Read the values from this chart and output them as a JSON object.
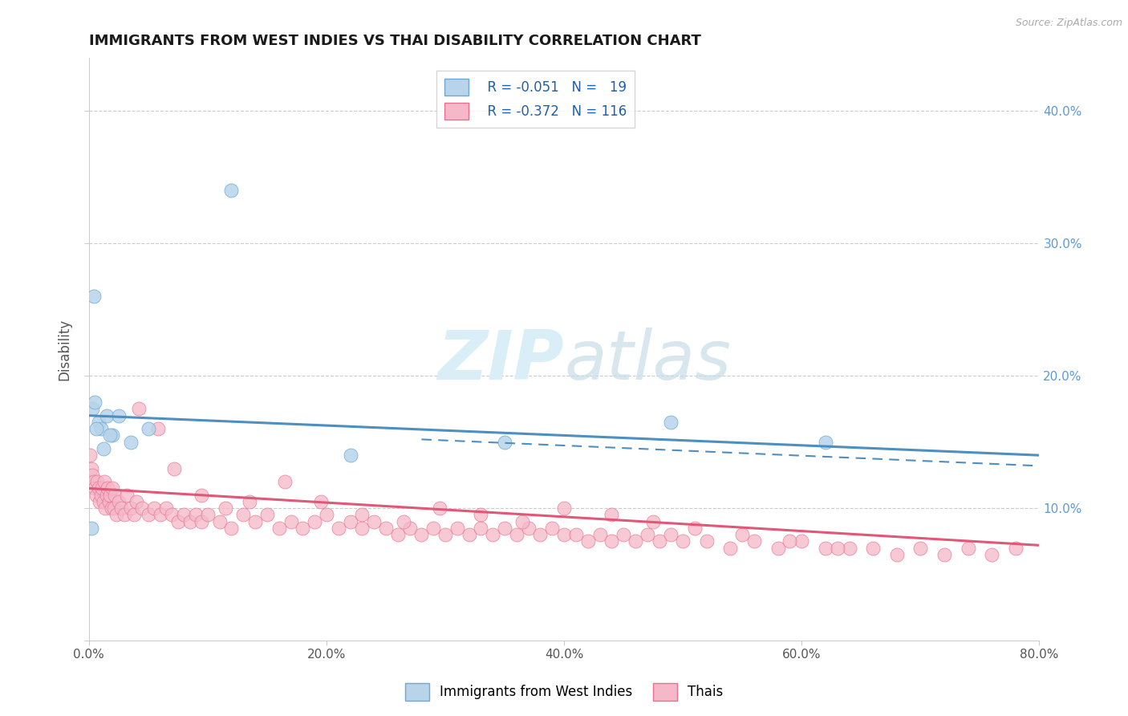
{
  "title": "IMMIGRANTS FROM WEST INDIES VS THAI DISABILITY CORRELATION CHART",
  "source": "Source: ZipAtlas.com",
  "ylabel": "Disability",
  "x_min": 0.0,
  "x_max": 80.0,
  "y_min": 0.0,
  "y_max": 44.0,
  "y_ticks_right": [
    10.0,
    20.0,
    30.0,
    40.0
  ],
  "x_ticks": [
    0.0,
    20.0,
    40.0,
    60.0,
    80.0
  ],
  "legend_r1": "R = -0.051",
  "legend_n1": "N =  19",
  "legend_r2": "R = -0.372",
  "legend_n2": "N = 116",
  "legend_label1": "Immigrants from West Indies",
  "legend_label2": "Thais",
  "color_blue_fill": "#b8d4ea",
  "color_pink_fill": "#f5b8c8",
  "color_blue_edge": "#6aaad4",
  "color_pink_edge": "#e87090",
  "color_blue_line": "#4f8fc0",
  "color_pink_line": "#e05878",
  "watermark_color": "#daeef8",
  "background": "#ffffff",
  "grid_color": "#cccccc",
  "right_axis_color": "#5b9bd5",
  "blue_solid_line": [
    0.0,
    17.0,
    80.0,
    14.0
  ],
  "blue_dash_line": [
    28.0,
    15.2,
    80.0,
    13.2
  ],
  "pink_solid_line": [
    0.0,
    11.5,
    80.0,
    7.2
  ],
  "blue_scatter_x": [
    0.3,
    0.5,
    0.8,
    1.0,
    1.5,
    2.0,
    2.5,
    3.5,
    5.0,
    1.2,
    0.6,
    0.4,
    1.8,
    12.0,
    22.0,
    35.0,
    49.0,
    62.0,
    0.2
  ],
  "blue_scatter_y": [
    17.5,
    18.0,
    16.5,
    16.0,
    17.0,
    15.5,
    17.0,
    15.0,
    16.0,
    14.5,
    16.0,
    26.0,
    15.5,
    34.0,
    14.0,
    15.0,
    16.5,
    15.0,
    8.5
  ],
  "pink_scatter_x": [
    0.1,
    0.2,
    0.3,
    0.4,
    0.5,
    0.6,
    0.7,
    0.8,
    0.9,
    1.0,
    1.1,
    1.2,
    1.3,
    1.4,
    1.5,
    1.6,
    1.7,
    1.8,
    1.9,
    2.0,
    2.1,
    2.2,
    2.3,
    2.5,
    2.7,
    3.0,
    3.2,
    3.5,
    3.8,
    4.0,
    4.5,
    5.0,
    5.5,
    6.0,
    6.5,
    7.0,
    7.5,
    8.0,
    8.5,
    9.0,
    9.5,
    10.0,
    11.0,
    12.0,
    13.0,
    14.0,
    15.0,
    16.0,
    17.0,
    18.0,
    19.0,
    20.0,
    21.0,
    22.0,
    23.0,
    24.0,
    25.0,
    26.0,
    27.0,
    28.0,
    29.0,
    30.0,
    31.0,
    32.0,
    33.0,
    34.0,
    35.0,
    36.0,
    37.0,
    38.0,
    39.0,
    40.0,
    41.0,
    42.0,
    43.0,
    44.0,
    45.0,
    46.0,
    47.0,
    48.0,
    49.0,
    50.0,
    52.0,
    54.0,
    56.0,
    58.0,
    60.0,
    62.0,
    64.0,
    66.0,
    68.0,
    70.0,
    72.0,
    74.0,
    76.0,
    78.0,
    4.2,
    5.8,
    7.2,
    9.5,
    11.5,
    13.5,
    16.5,
    19.5,
    23.0,
    26.5,
    29.5,
    33.0,
    36.5,
    40.0,
    44.0,
    47.5,
    51.0,
    55.0,
    59.0,
    63.0
  ],
  "pink_scatter_y": [
    14.0,
    13.0,
    12.5,
    12.0,
    11.5,
    11.0,
    12.0,
    11.5,
    10.5,
    11.0,
    11.5,
    10.5,
    12.0,
    10.0,
    11.0,
    11.5,
    10.5,
    11.0,
    10.0,
    11.5,
    10.0,
    11.0,
    9.5,
    10.5,
    10.0,
    9.5,
    11.0,
    10.0,
    9.5,
    10.5,
    10.0,
    9.5,
    10.0,
    9.5,
    10.0,
    9.5,
    9.0,
    9.5,
    9.0,
    9.5,
    9.0,
    9.5,
    9.0,
    8.5,
    9.5,
    9.0,
    9.5,
    8.5,
    9.0,
    8.5,
    9.0,
    9.5,
    8.5,
    9.0,
    8.5,
    9.0,
    8.5,
    8.0,
    8.5,
    8.0,
    8.5,
    8.0,
    8.5,
    8.0,
    8.5,
    8.0,
    8.5,
    8.0,
    8.5,
    8.0,
    8.5,
    8.0,
    8.0,
    7.5,
    8.0,
    7.5,
    8.0,
    7.5,
    8.0,
    7.5,
    8.0,
    7.5,
    7.5,
    7.0,
    7.5,
    7.0,
    7.5,
    7.0,
    7.0,
    7.0,
    6.5,
    7.0,
    6.5,
    7.0,
    6.5,
    7.0,
    17.5,
    16.0,
    13.0,
    11.0,
    10.0,
    10.5,
    12.0,
    10.5,
    9.5,
    9.0,
    10.0,
    9.5,
    9.0,
    10.0,
    9.5,
    9.0,
    8.5,
    8.0,
    7.5,
    7.0
  ]
}
